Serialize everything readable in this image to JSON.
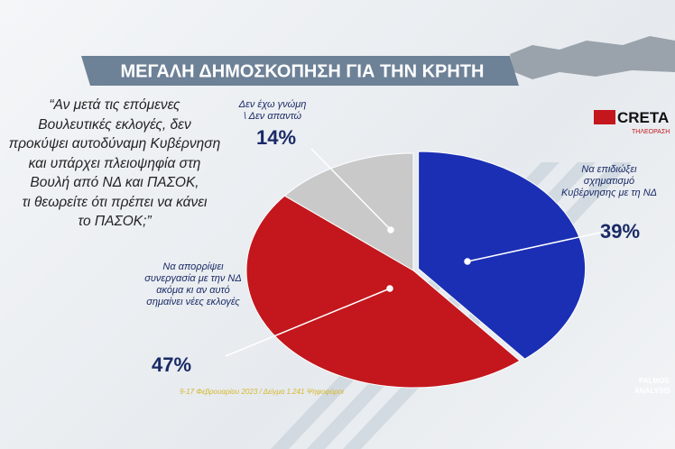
{
  "header": {
    "title": "ΜΕΓΑΛΗ ΔΗΜΟΣΚΟΠΗΣΗ ΓΙΑ ΤΗΝ ΚΡΗΤΗ",
    "logo": "CRETA",
    "logo_sub": "ΤΗΛΕΟΡΑΣΗ"
  },
  "question": [
    "“Αν μετά τις επόμενες",
    "Βουλευτικές εκλογές, δεν",
    "προκύψει αυτοδύναμη Κυβέρνηση",
    "και υπάρχει πλειοψηφία στη",
    "Βουλή από ΝΔ και ΠΑΣΟΚ,",
    "τι θεωρείτε ότι πρέπει να κάνει",
    "το ΠΑΣΟΚ;”"
  ],
  "footer": {
    "note": "9-17 Φεβρουαρίου 2023 / Δείγμα 1.241 Ψηφοφόροι",
    "source": [
      "PALMOS",
      "ANALYSIS"
    ]
  },
  "chart_data": {
    "type": "pie",
    "categories": [
      "Να επιδιώξει σχηματισμό Κυβέρνησης με τη ΝΔ",
      "Να απορρίψει συνεργασία με την ΝΔ ακόμα κι αν αυτό σημαίνει νέες εκλογές",
      "Δεν έχω γνώμη \\ Δεν απαντώ"
    ],
    "values": [
      39,
      47,
      14
    ],
    "value_labels": [
      "39%",
      "47%",
      "14%"
    ],
    "colors": [
      "#1b2fb5",
      "#c3171d",
      "#c9c9c9"
    ]
  }
}
